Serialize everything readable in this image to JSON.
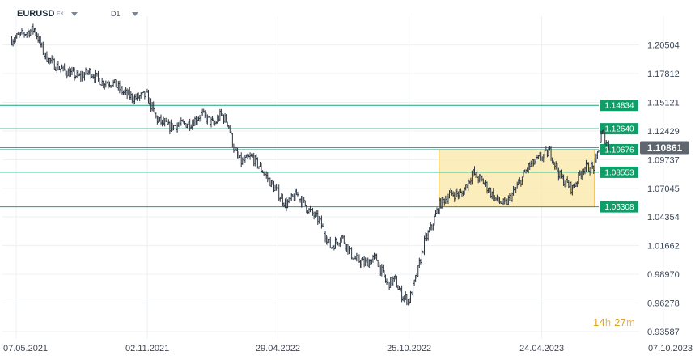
{
  "header": {
    "symbol": "EURUSD",
    "market": "FX",
    "timeframe": "D1"
  },
  "timer": {
    "hours": "14",
    "hours_unit": "h",
    "minutes": "27",
    "minutes_unit": "m"
  },
  "colors": {
    "price_line": "#2b3440",
    "level_line": "#1aa37a",
    "level_label_bg": "#0f9d68",
    "current_label_bg": "#5f6670",
    "zone_fill": "#fbe8a6",
    "zone_stroke": "#e6b63a",
    "grid": "#edf0f3",
    "timer": "#d9a423"
  },
  "chart_data": {
    "type": "line",
    "ylim": [
      0.9335,
      1.2245
    ],
    "y_ticks": [
      1.20504,
      1.17812,
      1.15121,
      1.12429,
      1.09737,
      1.07045,
      1.04354,
      1.01662,
      0.9897,
      0.96278,
      0.93587
    ],
    "y_tick_labels": [
      "1.20504",
      "1.17812",
      "1.15121",
      "1.12429",
      "1.09737",
      "1.07045",
      "1.04354",
      "1.01662",
      "0.98970",
      "0.96278",
      "0.93587"
    ],
    "x_tick_labels": [
      "07.05.2021",
      "02.11.2021",
      "29.04.2022",
      "25.10.2022",
      "24.04.2023",
      "07.10.2023"
    ],
    "x_tick_dates": [
      "2021-05-07",
      "2021-11-02",
      "2022-04-29",
      "2022-10-25",
      "2023-04-24",
      "2023-10-07"
    ],
    "grid": true,
    "levels": [
      {
        "value": 1.14834,
        "label": "1.14834"
      },
      {
        "value": 1.1264,
        "label": "1.12640"
      },
      {
        "value": 1.10676,
        "label": "1.10676"
      },
      {
        "value": 1.08553,
        "label": "1.08553"
      },
      {
        "value": 1.05308,
        "label": "1.05308"
      }
    ],
    "current_price": {
      "value": 1.10861,
      "label": "1.10861"
    },
    "zone": {
      "x_start": "2022-12-05",
      "x_end": "2023-07-05",
      "y_low": 1.05308,
      "y_high": 1.10676
    },
    "series": [
      {
        "x": [
          "2021-05-01",
          "2021-05-15",
          "2021-06-01",
          "2021-06-15",
          "2021-07-01",
          "2021-07-15",
          "2021-08-01",
          "2021-08-15",
          "2021-09-01",
          "2021-09-15",
          "2021-10-01",
          "2021-10-15",
          "2021-11-01",
          "2021-11-15",
          "2021-12-01",
          "2021-12-15",
          "2022-01-01",
          "2022-01-15",
          "2022-02-01",
          "2022-02-10",
          "2022-02-20",
          "2022-03-01",
          "2022-03-10",
          "2022-03-25",
          "2022-04-10",
          "2022-04-25",
          "2022-05-10",
          "2022-05-25",
          "2022-06-10",
          "2022-06-25",
          "2022-07-10",
          "2022-07-25",
          "2022-08-10",
          "2022-08-25",
          "2022-09-10",
          "2022-09-25",
          "2022-10-05",
          "2022-10-15",
          "2022-10-25",
          "2022-11-05",
          "2022-11-15",
          "2022-11-25",
          "2022-12-05",
          "2022-12-20",
          "2023-01-05",
          "2023-01-20",
          "2023-02-05",
          "2023-02-20",
          "2023-03-05",
          "2023-03-20",
          "2023-04-05",
          "2023-04-20",
          "2023-05-05",
          "2023-05-20",
          "2023-06-05",
          "2023-06-20",
          "2023-07-05",
          "2023-07-15",
          "2023-07-25"
        ],
        "values": [
          1.21,
          1.215,
          1.22,
          1.195,
          1.185,
          1.18,
          1.175,
          1.18,
          1.17,
          1.17,
          1.16,
          1.155,
          1.158,
          1.135,
          1.128,
          1.13,
          1.132,
          1.14,
          1.13,
          1.14,
          1.132,
          1.105,
          1.095,
          1.1,
          1.085,
          1.07,
          1.055,
          1.065,
          1.05,
          1.04,
          1.015,
          1.025,
          1.005,
          1.0,
          1.005,
          0.98,
          0.985,
          0.97,
          0.965,
          0.99,
          1.02,
          1.035,
          1.055,
          1.065,
          1.065,
          1.085,
          1.075,
          1.06,
          1.055,
          1.07,
          1.09,
          1.098,
          1.105,
          1.08,
          1.07,
          1.09,
          1.09,
          1.123,
          1.1086
        ]
      }
    ]
  }
}
